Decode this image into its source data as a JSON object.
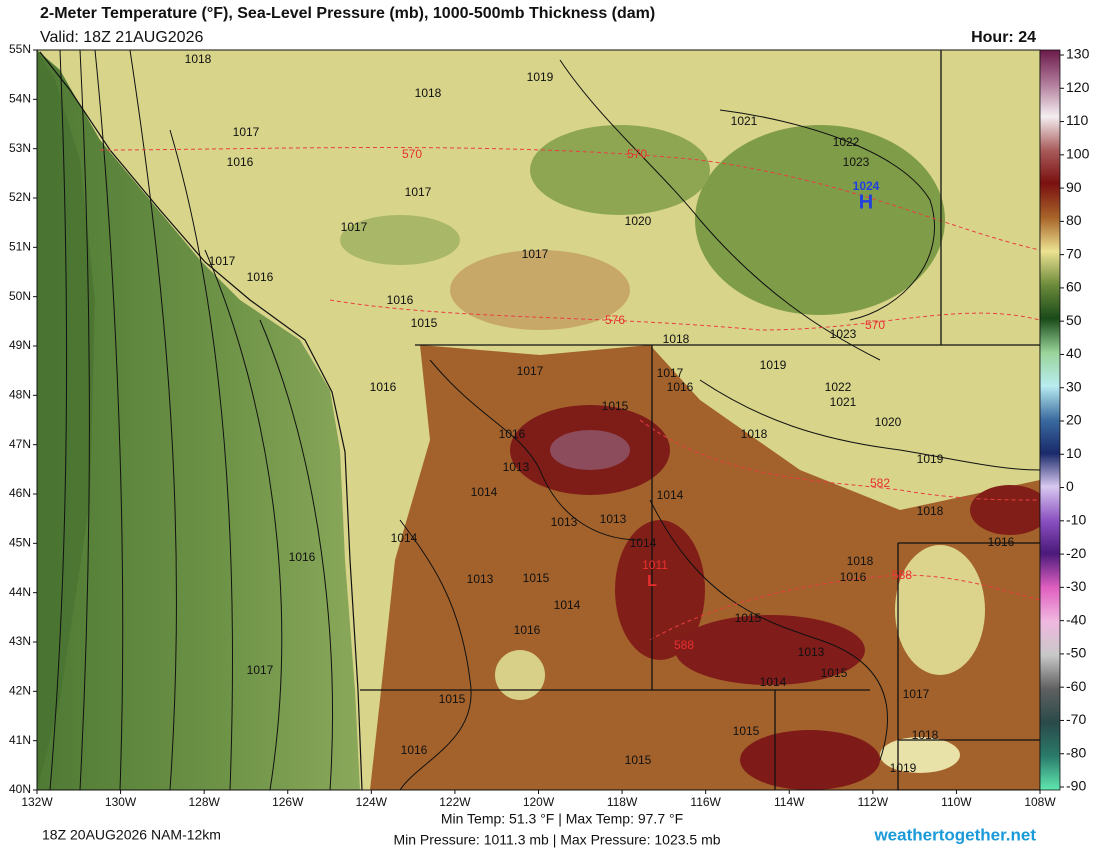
{
  "header": {
    "title": "2-Meter Temperature (°F), Sea-Level Pressure (mb), 1000-500mb Thickness (dam)",
    "valid": "Valid: 18Z 21AUG2026",
    "hour": "Hour: 24"
  },
  "map": {
    "lat_labels": [
      "55N",
      "54N",
      "53N",
      "52N",
      "51N",
      "50N",
      "49N",
      "48N",
      "47N",
      "46N",
      "45N",
      "44N",
      "43N",
      "42N",
      "41N",
      "40N"
    ],
    "lon_labels": [
      "132W",
      "130W",
      "128W",
      "126W",
      "124W",
      "122W",
      "120W",
      "118W",
      "116W",
      "114W",
      "112W",
      "110W",
      "108W"
    ],
    "isobar_labels": [
      "1018",
      "1019",
      "1018",
      "1021",
      "1017",
      "1022",
      "1023",
      "1016",
      "1017",
      "1020",
      "1017",
      "1017",
      "1017",
      "1016",
      "1016",
      "1015",
      "1023",
      "1018",
      "1019",
      "1017",
      "1017",
      "1016",
      "1022",
      "1021",
      "1016",
      "1015",
      "1020",
      "1016",
      "1018",
      "1013",
      "1019",
      "1014",
      "1014",
      "1018",
      "1013",
      "1013",
      "1014",
      "1014",
      "1016",
      "1018",
      "1016",
      "1013",
      "1015",
      "1014",
      "1015",
      "1016",
      "1013",
      "1015",
      "1014",
      "1017",
      "1016",
      "1017",
      "1015",
      "1015",
      "1018",
      "1016",
      "1015",
      "1019"
    ],
    "thickness_labels": [
      "570",
      "570",
      "576",
      "570",
      "582",
      "588",
      "588"
    ],
    "high": {
      "value": "1024",
      "symbol": "H"
    },
    "low": {
      "value": "1011",
      "symbol": "L"
    }
  },
  "colorbar": {
    "ticks": [
      130,
      120,
      110,
      100,
      90,
      80,
      70,
      60,
      50,
      40,
      30,
      20,
      10,
      0,
      -10,
      -20,
      -30,
      -40,
      -50,
      -60,
      -70,
      -80,
      -90
    ]
  },
  "footer": {
    "run": "18Z 20AUG2026 NAM-12km",
    "temp_range": "Min Temp:  51.3 °F | Max Temp:  97.7 °F",
    "pressure_range": "Min Pressure: 1011.3 mb | Max Pressure: 1023.5 mb",
    "credit": "weathertogether.net"
  }
}
